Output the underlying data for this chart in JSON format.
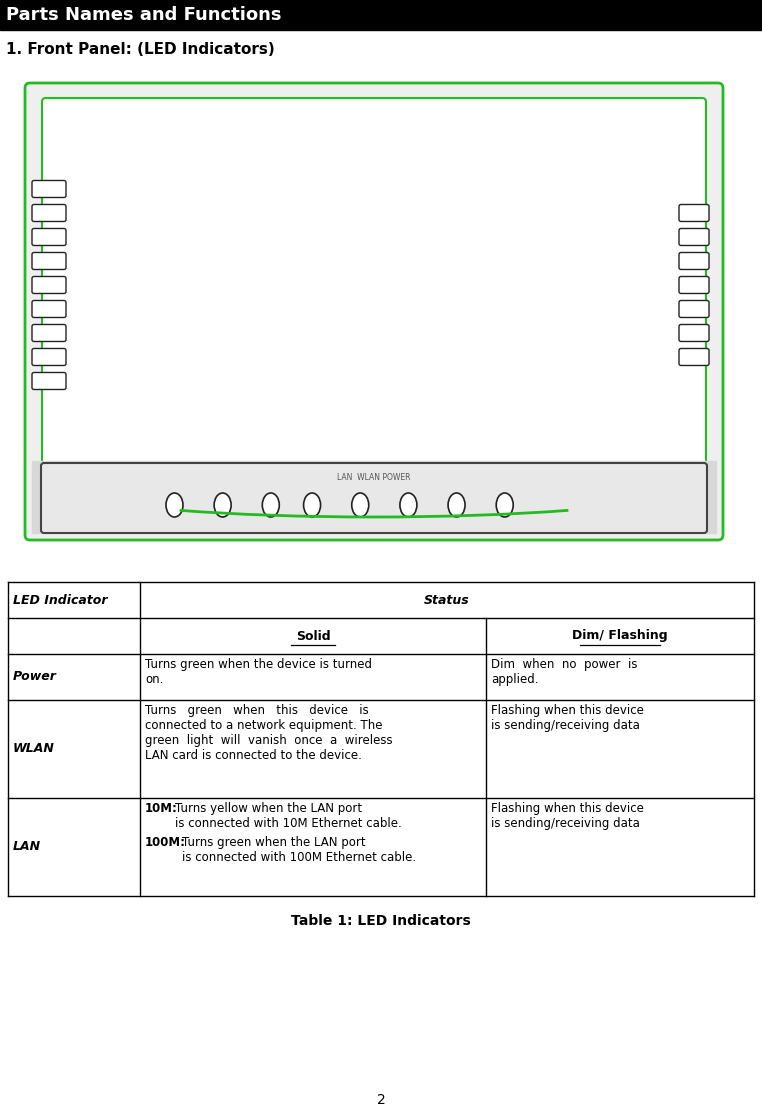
{
  "title": "Parts Names and Functions",
  "subtitle": "1. Front Panel: (LED Indicators)",
  "title_bg": "#000000",
  "title_fg": "#ffffff",
  "table_caption": "Table 1: LED Indicators",
  "page_number": "2",
  "header_col1": "LED Indicator",
  "header_col2": "Status",
  "subheader_solid": "Solid",
  "subheader_dim": "Dim/ Flashing",
  "device_outline_color": "#22bb22",
  "vent_color": "#333333",
  "tc": "#000000",
  "bg": "#ffffff"
}
